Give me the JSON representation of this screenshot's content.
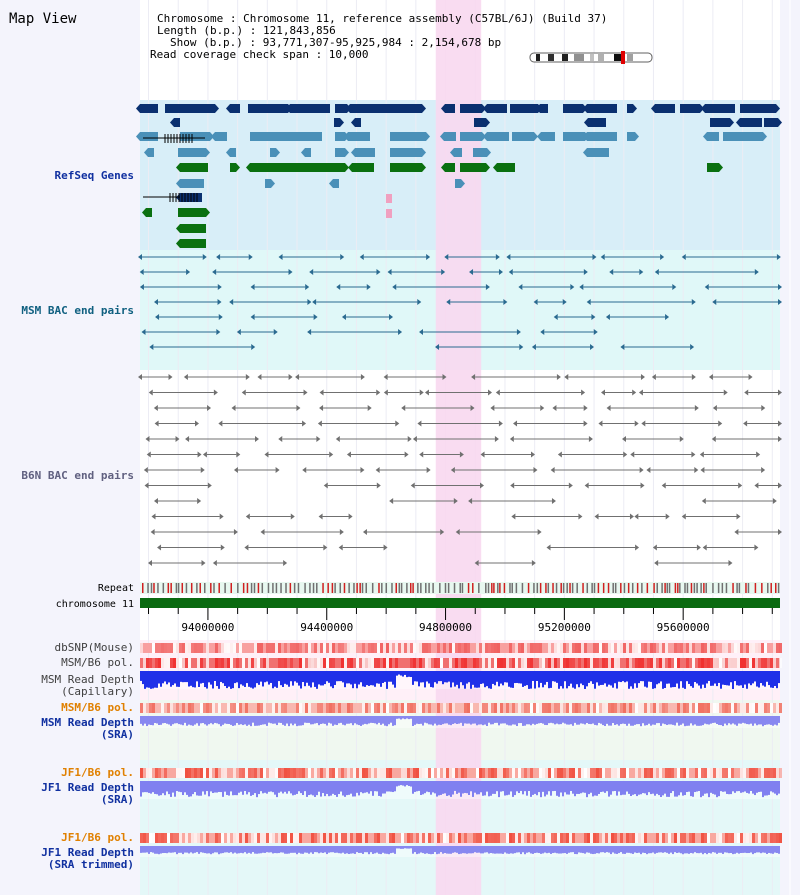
{
  "page_title": "Map View",
  "header": {
    "lines": [
      {
        "label": "Chromosome",
        "sep": " : ",
        "value": "Chromosome 11, reference assembly (C57BL/6J) (Build 37)"
      },
      {
        "label": "Length (b.p.)",
        "sep": " : ",
        "value": "121,843,856"
      },
      {
        "label": "Show (b.p.)",
        "sep": " : ",
        "value": "93,771,307-95,925,984 : 2,154,678 bp"
      },
      {
        "label": "Read coverage check span",
        "sep": " : ",
        "value": "10,000"
      }
    ]
  },
  "tracks": {
    "refseq": "RefSeq Genes",
    "msm_bac": "MSM BAC end pairs",
    "b6n_bac": "B6N BAC end pairs",
    "repeat": "Repeat",
    "chromosome": "chromosome 11",
    "dbsnp": "dbSNP(Mouse)",
    "msm_b6_pol": "MSM/B6 pol.",
    "msm_depth_cap_1": "MSM Read Depth",
    "msm_depth_cap_2": "(Capillary)",
    "msm_b6_pol2": "MSM/B6 pol.",
    "msm_depth_sra_1": "MSM Read Depth",
    "msm_depth_sra_2": "(SRA)",
    "jf1_b6_pol": "JF1/B6 pol.",
    "jf1_depth_sra_1": "JF1 Read Depth",
    "jf1_depth_sra_2": "(SRA)",
    "jf1_b6_pol2": "JF1/B6 pol.",
    "jf1_depth_trim_1": "JF1 Read Depth",
    "jf1_depth_trim_2": "(SRA trimmed)"
  },
  "axis": {
    "start": 93771307,
    "end": 95925984,
    "ticks": [
      "94000000",
      "94400000",
      "94800000",
      "95200000",
      "95600000"
    ],
    "tick_values": [
      94000000,
      94400000,
      94800000,
      95200000,
      95600000
    ]
  },
  "highlight": {
    "start": 94767000,
    "end": 94920000
  },
  "colors": {
    "refseq_bg": "#d8eef8",
    "bac_bg": "#e0f8f8",
    "highlight": "#f8d8f0",
    "gene_dark": "#0a3070",
    "gene_mid": "#4a90b8",
    "gene_green": "#0a7010",
    "msm_bac": "#2a6a90",
    "b6n_bac": "#707070",
    "chromosome": "#0a6a10",
    "label_blue": "#1030a0",
    "label_orange": "#e08000",
    "label_msm": "#106080"
  }
}
